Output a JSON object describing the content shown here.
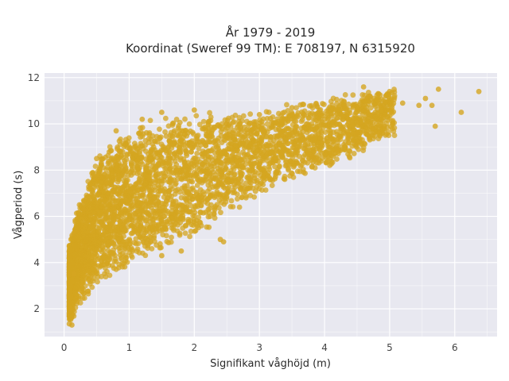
{
  "chart_data": {
    "type": "scatter",
    "title_line1": "År 1979 - 2019",
    "title_line2": "Koordinat (Sweref 99 TM): E 708197, N 6315920",
    "xlabel": "Signifikant våghöjd (m)",
    "ylabel": "Vågperiod (s)",
    "xlim": [
      -0.3,
      6.65
    ],
    "ylim": [
      0.8,
      12.2
    ],
    "xticks": [
      "0",
      "1",
      "2",
      "3",
      "4",
      "5",
      "6"
    ],
    "yticks": [
      "2",
      "4",
      "6",
      "8",
      "10",
      "12"
    ],
    "grid": true,
    "legend": "none",
    "colors": {
      "marker": "#d4a520",
      "plot_background": "#e8e8f0",
      "grid": "#ffffff"
    },
    "envelope": {
      "x": [
        0.1,
        0.2,
        0.3,
        0.5,
        0.75,
        1.0,
        1.25,
        1.5,
        1.75,
        2.0,
        2.5,
        3.0,
        3.5,
        4.0,
        4.5,
        5.0,
        5.5,
        6.0,
        6.4
      ],
      "y_min": [
        1.3,
        1.9,
        2.3,
        2.8,
        3.3,
        3.7,
        4.1,
        4.4,
        4.8,
        5.2,
        5.9,
        6.8,
        7.5,
        8.0,
        8.6,
        9.3,
        9.9,
        10.5,
        11.0
      ],
      "y_max": [
        5.0,
        6.4,
        7.2,
        8.6,
        9.5,
        9.9,
        10.2,
        10.4,
        10.5,
        10.5,
        10.6,
        10.7,
        11.0,
        11.2,
        11.5,
        11.6,
        11.6,
        11.6,
        11.5
      ]
    },
    "sample_points": [
      {
        "x": 0.08,
        "y": 1.35
      },
      {
        "x": 0.12,
        "y": 1.3
      },
      {
        "x": 0.1,
        "y": 2.0
      },
      {
        "x": 0.15,
        "y": 3.5
      },
      {
        "x": 0.3,
        "y": 6.3
      },
      {
        "x": 0.5,
        "y": 8.5
      },
      {
        "x": 0.8,
        "y": 9.7
      },
      {
        "x": 1.2,
        "y": 10.2
      },
      {
        "x": 1.5,
        "y": 10.5
      },
      {
        "x": 2.0,
        "y": 10.6
      },
      {
        "x": 2.5,
        "y": 10.0
      },
      {
        "x": 3.0,
        "y": 10.4
      },
      {
        "x": 3.5,
        "y": 10.7
      },
      {
        "x": 4.0,
        "y": 10.2
      },
      {
        "x": 4.6,
        "y": 11.6
      },
      {
        "x": 5.0,
        "y": 11.4
      },
      {
        "x": 5.2,
        "y": 10.9
      },
      {
        "x": 5.45,
        "y": 10.8
      },
      {
        "x": 5.55,
        "y": 11.1
      },
      {
        "x": 5.65,
        "y": 10.8
      },
      {
        "x": 5.7,
        "y": 9.9
      },
      {
        "x": 5.75,
        "y": 11.5
      },
      {
        "x": 6.1,
        "y": 10.5
      },
      {
        "x": 6.37,
        "y": 11.4
      },
      {
        "x": 1.8,
        "y": 4.5
      },
      {
        "x": 2.4,
        "y": 5.0
      },
      {
        "x": 2.45,
        "y": 4.9
      },
      {
        "x": 1.5,
        "y": 4.3
      },
      {
        "x": 4.5,
        "y": 9.6
      },
      {
        "x": 4.8,
        "y": 10.0
      },
      {
        "x": 4.2,
        "y": 8.9
      },
      {
        "x": 3.8,
        "y": 8.6
      }
    ]
  }
}
